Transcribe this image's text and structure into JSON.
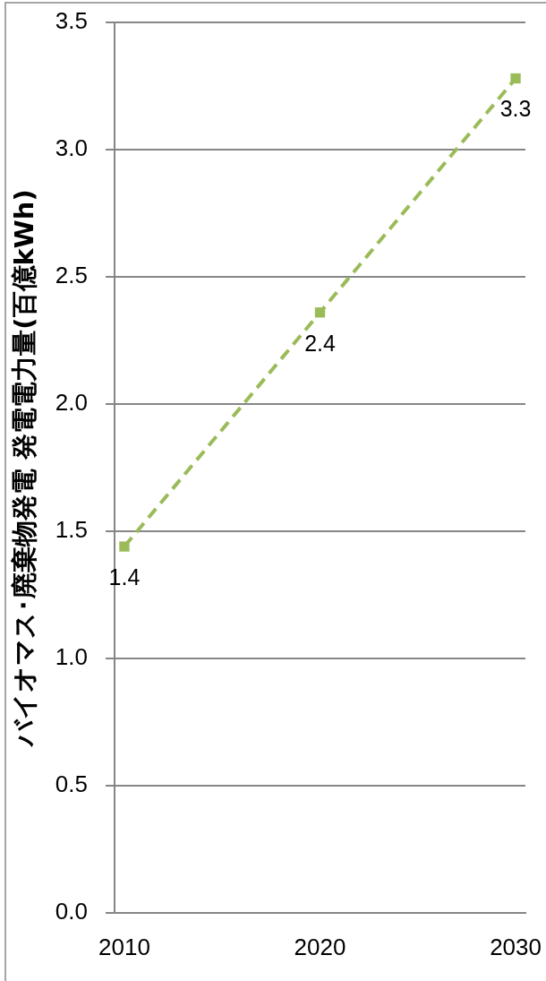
{
  "chart_data": {
    "type": "line",
    "ylabel": "バイオマス･廃棄物発電 発電電力量(百億kWh)",
    "x": [
      2010,
      2020,
      2030
    ],
    "xlim": [
      2009.5,
      2030.5
    ],
    "xticks": [
      2010,
      2020,
      2030
    ],
    "ylim": [
      0,
      3.5
    ],
    "yticks": [
      {
        "value": 0,
        "label": "0.0"
      },
      0.5,
      {
        "value": 1,
        "label": "1.0"
      },
      1.5,
      {
        "value": 2,
        "label": "2.0"
      },
      2.5,
      {
        "value": 3,
        "label": "3.0"
      },
      3.5
    ],
    "grid": "y",
    "marker": "square",
    "line_style": "dashed",
    "series": [
      {
        "color": "#9bbb59",
        "values": [
          1.44,
          2.36,
          3.28
        ],
        "value_labels": [
          "1.4",
          "2.4",
          "3.3"
        ]
      }
    ]
  }
}
